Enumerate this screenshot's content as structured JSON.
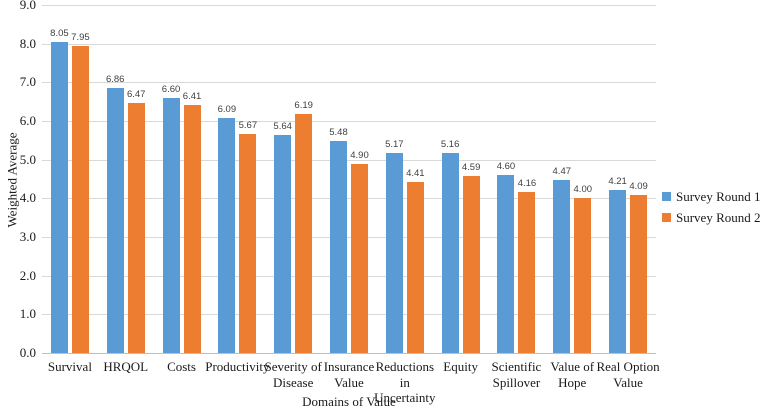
{
  "chart_data": {
    "type": "bar",
    "title": "",
    "xlabel": "Domains of Value",
    "ylabel": "Weighted Average",
    "ylim": [
      0,
      9
    ],
    "ytick_step": 1,
    "ytick_labels": [
      "0.0",
      "1.0",
      "2.0",
      "3.0",
      "4.0",
      "5.0",
      "6.0",
      "7.0",
      "8.0",
      "9.0"
    ],
    "grid": true,
    "data_labels": true,
    "legend_position": "right",
    "categories": [
      "Survival",
      "HRQOL",
      "Costs",
      "Productivity",
      "Severity of Disease",
      "Insurance Value",
      "Reductions in Uncertainty",
      "Equity",
      "Scientific Spillover",
      "Value of Hope",
      "Real Option Value"
    ],
    "x_tick_labels": [
      "Survival",
      "HRQOL",
      "Costs",
      "Productivity",
      "Severity of\nDisease",
      "Insurance\nValue",
      "Reductions\nin\nUncertainty",
      "Equity",
      "Scientific\nSpillover",
      "Value of\nHope",
      "Real Option\nValue"
    ],
    "series": [
      {
        "name": "Survey Round 1",
        "color": "#5B9BD5",
        "values": [
          8.05,
          6.86,
          6.6,
          6.09,
          5.64,
          5.48,
          5.17,
          5.16,
          4.6,
          4.47,
          4.21
        ]
      },
      {
        "name": "Survey Round 2",
        "color": "#ED7D31",
        "values": [
          7.95,
          6.47,
          6.41,
          5.67,
          6.19,
          4.9,
          4.41,
          4.59,
          4.16,
          4.0,
          4.09
        ]
      }
    ]
  },
  "colors": {
    "background": "#FFFFFF",
    "gridline": "#D9D9D9",
    "axis_line": "#BFBFBF",
    "axis_text": "#1A1A1A",
    "data_label_text": "#404040"
  }
}
